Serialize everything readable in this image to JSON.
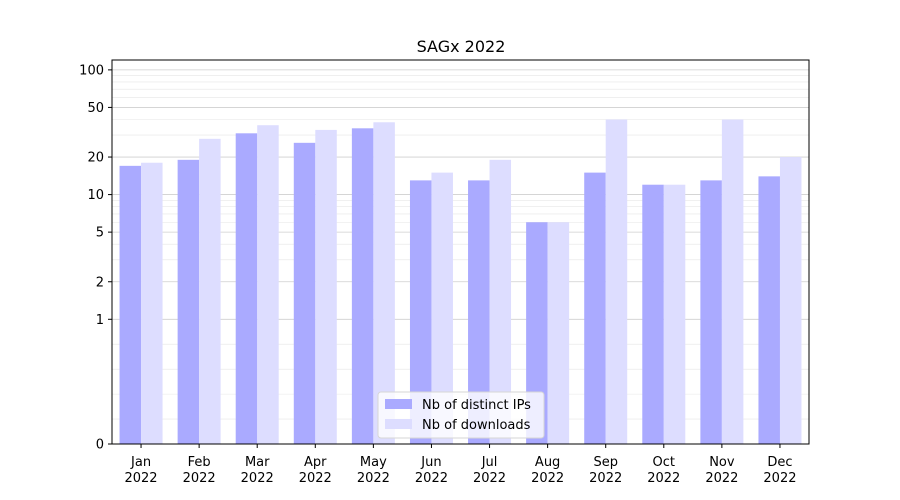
{
  "chart_data": {
    "type": "bar",
    "title": "SAGx 2022",
    "xlabel": "",
    "ylabel": "",
    "y_scale": "symlog",
    "ylim": [
      0,
      120
    ],
    "y_ticks": [
      0,
      1,
      2,
      5,
      10,
      20,
      50,
      100
    ],
    "y_tick_labels": [
      "0",
      "1",
      "2",
      "5",
      "10",
      "20",
      "50",
      "100"
    ],
    "grid": "horizontal",
    "legend_position": "lower-center",
    "categories": [
      [
        "Jan",
        "2022"
      ],
      [
        "Feb",
        "2022"
      ],
      [
        "Mar",
        "2022"
      ],
      [
        "Apr",
        "2022"
      ],
      [
        "May",
        "2022"
      ],
      [
        "Jun",
        "2022"
      ],
      [
        "Jul",
        "2022"
      ],
      [
        "Aug",
        "2022"
      ],
      [
        "Sep",
        "2022"
      ],
      [
        "Oct",
        "2022"
      ],
      [
        "Nov",
        "2022"
      ],
      [
        "Dec",
        "2022"
      ]
    ],
    "series": [
      {
        "name": "Nb of distinct IPs",
        "color": "#aaaaff",
        "values": [
          17,
          19,
          31,
          26,
          34,
          13,
          13,
          6,
          15,
          12,
          13,
          14
        ]
      },
      {
        "name": "Nb of downloads",
        "color": "#ddddff",
        "values": [
          18,
          28,
          36,
          33,
          38,
          15,
          19,
          6,
          40,
          12,
          40,
          20
        ]
      }
    ]
  }
}
